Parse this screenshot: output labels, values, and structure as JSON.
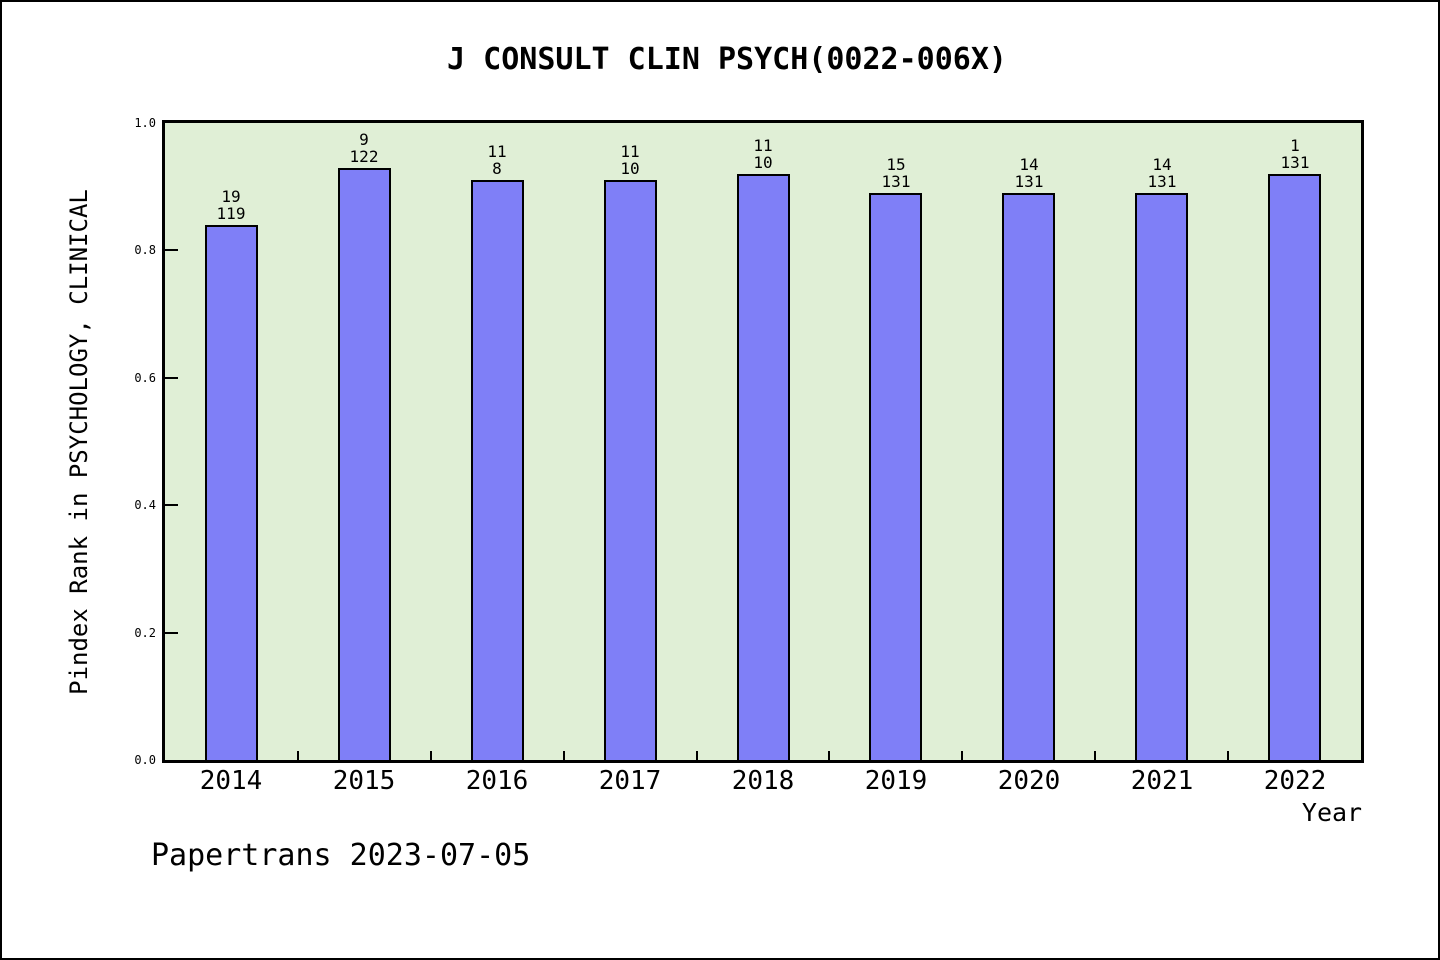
{
  "page": {
    "footer": "Papertrans 2023-07-05"
  },
  "chart_data": {
    "type": "bar",
    "title": "J CONSULT CLIN PSYCH(0022-006X)",
    "xlabel": "Year",
    "ylabel": "Pindex Rank in PSYCHOLOGY, CLINICAL",
    "categories": [
      "2014",
      "2015",
      "2016",
      "2017",
      "2018",
      "2019",
      "2020",
      "2021",
      "2022"
    ],
    "values": [
      0.84,
      0.93,
      0.91,
      0.91,
      0.92,
      0.89,
      0.89,
      0.89,
      0.92
    ],
    "bar_labels": [
      [
        "19",
        "119"
      ],
      [
        "9",
        "122"
      ],
      [
        "11",
        "8"
      ],
      [
        "11",
        "10"
      ],
      [
        "11",
        "10"
      ],
      [
        "15",
        "131"
      ],
      [
        "14",
        "131"
      ],
      [
        "14",
        "131"
      ],
      [
        "1",
        "131"
      ]
    ],
    "yticks": [
      "0.0",
      "0.2",
      "0.4",
      "0.6",
      "0.8",
      "1.0"
    ],
    "ylim": [
      0,
      1
    ],
    "grid": false,
    "legend": null,
    "colors": {
      "bar_fill": "#7f7ff7",
      "bar_edge": "#000000",
      "plot_bg": "#e0efd6",
      "page_bg": "#ffffff",
      "frame": "#000000"
    }
  }
}
